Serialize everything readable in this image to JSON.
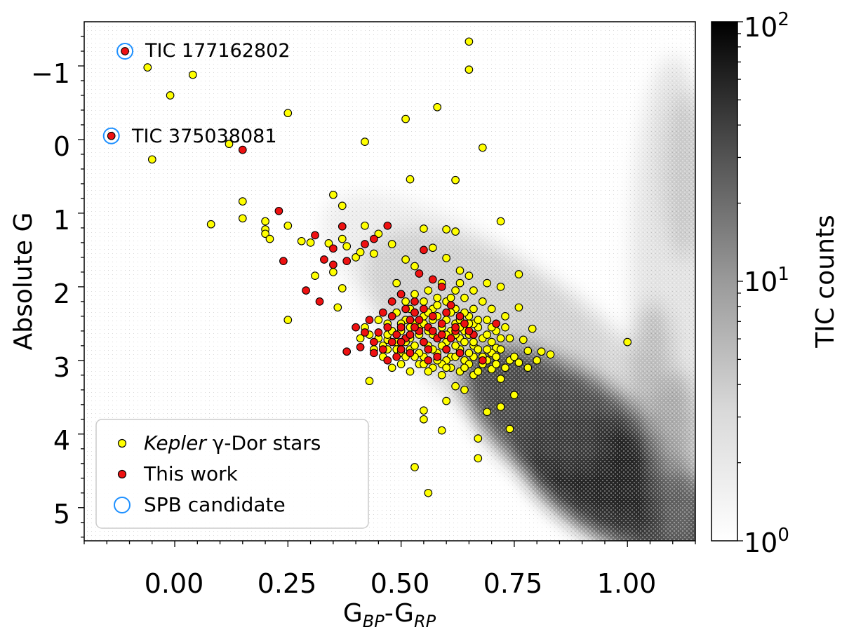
{
  "chart_data": {
    "type": "scatter",
    "xlabel": {
      "main": "G",
      "sub1": "BP",
      "mid": "-G",
      "sub2": "RP"
    },
    "ylabel": "Absolute G",
    "xlim": [
      -0.2,
      1.15
    ],
    "ylim": [
      5.45,
      -1.6
    ],
    "y_inverted": true,
    "xticks": [
      "0.00",
      "0.25",
      "0.50",
      "0.75",
      "1.00"
    ],
    "xtick_values": [
      0.0,
      0.25,
      0.5,
      0.75,
      1.0
    ],
    "yticks": [
      "−1",
      "0",
      "1",
      "2",
      "3",
      "4",
      "5"
    ],
    "ytick_values": [
      -1,
      0,
      1,
      2,
      3,
      4,
      5
    ],
    "colorbar": {
      "label": "TIC counts",
      "scale": "log",
      "range": [
        1,
        100
      ],
      "tick_values": [
        1,
        10,
        100
      ],
      "tick_labels": [
        {
          "base": "10",
          "exp": "0"
        },
        {
          "base": "10",
          "exp": "1"
        },
        {
          "base": "10",
          "exp": "2"
        }
      ]
    },
    "background": {
      "type": "density",
      "description_key": "TIC catalogue 2D histogram (greyscale)"
    },
    "series": [
      {
        "name": "Kepler γ-Dor stars",
        "legend_italic": "Kepler",
        "legend_rest": " γ-Dor stars",
        "color": "#ffff00",
        "edge": "#000000",
        "points": [
          [
            -0.06,
            -0.98
          ],
          [
            0.04,
            -0.88
          ],
          [
            -0.01,
            -0.6
          ],
          [
            0.25,
            -0.36
          ],
          [
            0.12,
            0.06
          ],
          [
            -0.05,
            0.27
          ],
          [
            0.65,
            -1.33
          ],
          [
            0.65,
            -0.95
          ],
          [
            0.58,
            -0.44
          ],
          [
            0.51,
            -0.28
          ],
          [
            0.42,
            0.03
          ],
          [
            0.68,
            0.11
          ],
          [
            0.52,
            0.54
          ],
          [
            0.62,
            0.55
          ],
          [
            0.35,
            0.75
          ],
          [
            0.37,
            0.9
          ],
          [
            0.15,
            0.84
          ],
          [
            0.15,
            1.07
          ],
          [
            0.08,
            1.15
          ],
          [
            0.2,
            1.11
          ],
          [
            0.2,
            1.22
          ],
          [
            0.2,
            1.28
          ],
          [
            0.21,
            1.35
          ],
          [
            0.25,
            1.17
          ],
          [
            0.28,
            1.38
          ],
          [
            0.3,
            1.4
          ],
          [
            0.34,
            1.41
          ],
          [
            0.37,
            1.35
          ],
          [
            0.38,
            1.45
          ],
          [
            0.42,
            1.17
          ],
          [
            0.45,
            1.28
          ],
          [
            0.55,
            1.21
          ],
          [
            0.6,
            1.22
          ],
          [
            0.62,
            1.25
          ],
          [
            0.72,
            1.11
          ],
          [
            0.4,
            1.6
          ],
          [
            0.41,
            1.53
          ],
          [
            0.44,
            1.55
          ],
          [
            0.48,
            1.42
          ],
          [
            0.51,
            1.63
          ],
          [
            0.57,
            1.47
          ],
          [
            0.6,
            1.61
          ],
          [
            0.53,
            1.72
          ],
          [
            0.63,
            1.78
          ],
          [
            0.65,
            1.85
          ],
          [
            0.69,
            1.95
          ],
          [
            0.72,
            2.0
          ],
          [
            0.76,
            1.83
          ],
          [
            0.31,
            1.85
          ],
          [
            0.35,
            1.8
          ],
          [
            0.37,
            2.02
          ],
          [
            0.36,
            2.28
          ],
          [
            0.25,
            2.45
          ],
          [
            0.43,
            3.28
          ],
          [
            0.53,
            4.45
          ],
          [
            0.56,
            4.8
          ],
          [
            0.55,
            3.68
          ],
          [
            0.55,
            3.8
          ],
          [
            0.59,
            3.95
          ],
          [
            0.6,
            3.55
          ],
          [
            0.67,
            4.06
          ],
          [
            0.67,
            4.33
          ],
          [
            0.69,
            3.7
          ],
          [
            0.72,
            3.63
          ],
          [
            0.74,
            3.93
          ],
          [
            0.75,
            3.47
          ],
          [
            0.79,
            2.57
          ],
          [
            0.78,
            2.87
          ],
          [
            0.81,
            2.88
          ],
          [
            0.83,
            2.92
          ],
          [
            0.78,
            3.1
          ],
          [
            0.76,
            3.03
          ],
          [
            0.8,
            3.0
          ],
          [
            1.0,
            2.75
          ],
          [
            0.76,
            2.28
          ],
          [
            0.73,
            2.4
          ],
          [
            0.74,
            2.7
          ],
          [
            0.77,
            2.72
          ],
          [
            0.71,
            2.83
          ],
          [
            0.7,
            3.12
          ],
          [
            0.72,
            3.25
          ],
          [
            0.66,
            3.2
          ],
          [
            0.62,
            3.35
          ],
          [
            0.64,
            3.4
          ],
          [
            0.46,
            2.8
          ],
          [
            0.47,
            2.72
          ],
          [
            0.49,
            2.85
          ],
          [
            0.5,
            2.6
          ],
          [
            0.52,
            2.7
          ],
          [
            0.54,
            2.55
          ],
          [
            0.55,
            2.95
          ],
          [
            0.56,
            2.8
          ],
          [
            0.58,
            2.9
          ],
          [
            0.6,
            2.75
          ],
          [
            0.61,
            2.95
          ],
          [
            0.63,
            2.85
          ],
          [
            0.64,
            3.0
          ],
          [
            0.66,
            2.8
          ],
          [
            0.68,
            2.7
          ],
          [
            0.7,
            2.75
          ],
          [
            0.67,
            2.55
          ],
          [
            0.65,
            2.4
          ],
          [
            0.62,
            2.3
          ],
          [
            0.6,
            2.2
          ],
          [
            0.58,
            2.15
          ],
          [
            0.56,
            2.05
          ],
          [
            0.53,
            2.1
          ],
          [
            0.51,
            2.2
          ],
          [
            0.49,
            2.35
          ],
          [
            0.47,
            2.5
          ],
          [
            0.45,
            2.45
          ],
          [
            0.43,
            2.65
          ],
          [
            0.44,
            2.85
          ],
          [
            0.46,
            2.95
          ],
          [
            0.48,
            3.1
          ],
          [
            0.5,
            3.05
          ],
          [
            0.52,
            3.15
          ],
          [
            0.54,
            3.05
          ],
          [
            0.57,
            3.1
          ],
          [
            0.59,
            3.2
          ],
          [
            0.61,
            3.1
          ],
          [
            0.63,
            3.15
          ],
          [
            0.65,
            3.05
          ],
          [
            0.69,
            3.0
          ],
          [
            0.71,
            2.6
          ],
          [
            0.69,
            2.45
          ],
          [
            0.66,
            2.3
          ],
          [
            0.64,
            2.15
          ],
          [
            0.62,
            2.05
          ],
          [
            0.59,
            1.95
          ],
          [
            0.57,
            2.3
          ],
          [
            0.55,
            2.4
          ],
          [
            0.53,
            2.5
          ],
          [
            0.51,
            2.45
          ],
          [
            0.5,
            2.9
          ],
          [
            0.52,
            2.85
          ],
          [
            0.55,
            2.75
          ],
          [
            0.57,
            2.65
          ],
          [
            0.59,
            2.55
          ],
          [
            0.61,
            2.6
          ],
          [
            0.63,
            2.7
          ],
          [
            0.66,
            2.95
          ],
          [
            0.68,
            3.05
          ],
          [
            0.7,
            2.9
          ],
          [
            0.72,
            2.85
          ],
          [
            0.74,
            3.0
          ],
          [
            0.6,
            2.45
          ],
          [
            0.62,
            2.5
          ],
          [
            0.64,
            2.6
          ],
          [
            0.58,
            2.4
          ],
          [
            0.56,
            2.6
          ],
          [
            0.54,
            2.9
          ],
          [
            0.53,
            2.95
          ],
          [
            0.49,
            2.75
          ],
          [
            0.47,
            2.65
          ],
          [
            0.45,
            2.7
          ],
          [
            0.42,
            2.55
          ],
          [
            0.41,
            2.7
          ],
          [
            0.6,
            3.0
          ],
          [
            0.62,
            2.95
          ],
          [
            0.65,
            2.65
          ],
          [
            0.67,
            2.85
          ],
          [
            0.69,
            2.65
          ],
          [
            0.71,
            2.95
          ],
          [
            0.73,
            2.55
          ],
          [
            0.66,
            2.5
          ],
          [
            0.63,
            2.45
          ],
          [
            0.61,
            2.35
          ],
          [
            0.58,
            2.25
          ],
          [
            0.55,
            2.2
          ],
          [
            0.52,
            2.3
          ],
          [
            0.49,
            1.95
          ],
          [
            0.5,
            2.1
          ],
          [
            0.63,
            1.95
          ],
          [
            0.66,
            2.05
          ],
          [
            0.68,
            2.2
          ],
          [
            0.7,
            2.3
          ],
          [
            0.57,
            2.85
          ],
          [
            0.59,
            3.05
          ],
          [
            0.64,
            2.75
          ],
          [
            0.56,
            3.15
          ],
          [
            0.6,
            2.85
          ],
          [
            0.51,
            2.95
          ],
          [
            0.48,
            2.6
          ],
          [
            0.54,
            2.65
          ],
          [
            0.58,
            2.7
          ],
          [
            0.62,
            2.65
          ],
          [
            0.65,
            2.9
          ],
          [
            0.67,
            2.45
          ],
          [
            0.7,
            2.55
          ],
          [
            0.72,
            2.7
          ],
          [
            0.53,
            2.35
          ],
          [
            0.55,
            2.5
          ],
          [
            0.61,
            2.15
          ],
          [
            0.64,
            2.35
          ],
          [
            0.66,
            2.75
          ],
          [
            0.68,
            2.95
          ],
          [
            0.6,
            2.65
          ],
          [
            0.57,
            2.45
          ],
          [
            0.52,
            2.55
          ],
          [
            0.5,
            2.5
          ],
          [
            0.47,
            2.85
          ],
          [
            0.56,
            2.35
          ],
          [
            0.59,
            2.8
          ],
          [
            0.63,
            2.55
          ],
          [
            0.65,
            2.5
          ],
          [
            0.69,
            2.85
          ],
          [
            0.62,
            2.8
          ],
          [
            0.58,
            3.0
          ],
          [
            0.55,
            3.05
          ],
          [
            0.51,
            2.75
          ],
          [
            0.53,
            2.8
          ],
          [
            0.6,
            3.1
          ],
          [
            0.64,
            3.1
          ],
          [
            0.67,
            3.15
          ],
          [
            0.71,
            3.05
          ],
          [
            0.73,
            3.1
          ],
          [
            0.75,
            2.95
          ]
        ]
      },
      {
        "name": "This work",
        "color": "#ee1111",
        "edge": "#000000",
        "points": [
          [
            -0.11,
            -1.2
          ],
          [
            -0.14,
            -0.05
          ],
          [
            0.15,
            0.14
          ],
          [
            0.23,
            0.97
          ],
          [
            0.24,
            1.65
          ],
          [
            0.29,
            2.05
          ],
          [
            0.31,
            1.3
          ],
          [
            0.32,
            2.2
          ],
          [
            0.33,
            1.63
          ],
          [
            0.35,
            1.7
          ],
          [
            0.35,
            1.48
          ],
          [
            0.38,
            1.65
          ],
          [
            0.37,
            1.18
          ],
          [
            0.38,
            2.88
          ],
          [
            0.4,
            2.55
          ],
          [
            0.42,
            1.42
          ],
          [
            0.44,
            1.35
          ],
          [
            0.47,
            1.17
          ],
          [
            0.48,
            2.4
          ],
          [
            0.5,
            2.55
          ],
          [
            0.44,
            2.75
          ],
          [
            0.45,
            2.62
          ],
          [
            0.46,
            2.85
          ],
          [
            0.47,
            2.55
          ],
          [
            0.48,
            2.75
          ],
          [
            0.49,
            2.95
          ],
          [
            0.5,
            2.85
          ],
          [
            0.51,
            2.7
          ],
          [
            0.52,
            2.45
          ],
          [
            0.53,
            2.35
          ],
          [
            0.54,
            2.6
          ],
          [
            0.55,
            2.75
          ],
          [
            0.56,
            2.55
          ],
          [
            0.57,
            2.4
          ],
          [
            0.58,
            2.7
          ],
          [
            0.59,
            2.5
          ],
          [
            0.6,
            2.35
          ],
          [
            0.61,
            2.25
          ],
          [
            0.62,
            2.6
          ],
          [
            0.63,
            2.4
          ],
          [
            0.64,
            2.5
          ],
          [
            0.66,
            2.65
          ],
          [
            0.68,
            3.0
          ],
          [
            0.71,
            2.5
          ],
          [
            0.48,
            2.2
          ],
          [
            0.5,
            2.1
          ],
          [
            0.55,
            1.5
          ],
          [
            0.54,
            1.82
          ],
          [
            0.57,
            1.9
          ],
          [
            0.59,
            2.0
          ],
          [
            0.51,
            2.3
          ],
          [
            0.53,
            2.2
          ],
          [
            0.46,
            2.35
          ],
          [
            0.43,
            2.45
          ],
          [
            0.42,
            2.62
          ],
          [
            0.41,
            2.82
          ],
          [
            0.44,
            2.9
          ],
          [
            0.47,
            3.0
          ],
          [
            0.52,
            2.9
          ],
          [
            0.56,
            2.85
          ],
          [
            0.58,
            2.95
          ],
          [
            0.6,
            2.85
          ],
          [
            0.62,
            2.55
          ],
          [
            0.65,
            2.6
          ],
          [
            0.55,
            2.3
          ],
          [
            0.57,
            2.6
          ],
          [
            0.52,
            2.65
          ],
          [
            0.49,
            2.65
          ],
          [
            0.54,
            2.45
          ],
          [
            0.61,
            2.7
          ],
          [
            0.63,
            2.9
          ],
          [
            0.56,
            3.0
          ],
          [
            0.59,
            2.65
          ],
          [
            0.5,
            2.75
          ],
          [
            0.53,
            2.55
          ]
        ]
      }
    ],
    "highlight": {
      "name": "SPB candidate",
      "color": "#1e90ff",
      "points": [
        [
          -0.11,
          -1.2
        ],
        [
          -0.14,
          -0.05
        ]
      ]
    },
    "annotations": [
      {
        "text": "TIC 177162802",
        "x": -0.1,
        "y": -1.2
      },
      {
        "text": "TIC 375038081",
        "x": -0.13,
        "y": -0.05
      }
    ],
    "legend": {
      "position": "lower-left",
      "entries": [
        "Kepler γ-Dor stars",
        "This work",
        "SPB candidate"
      ]
    }
  }
}
